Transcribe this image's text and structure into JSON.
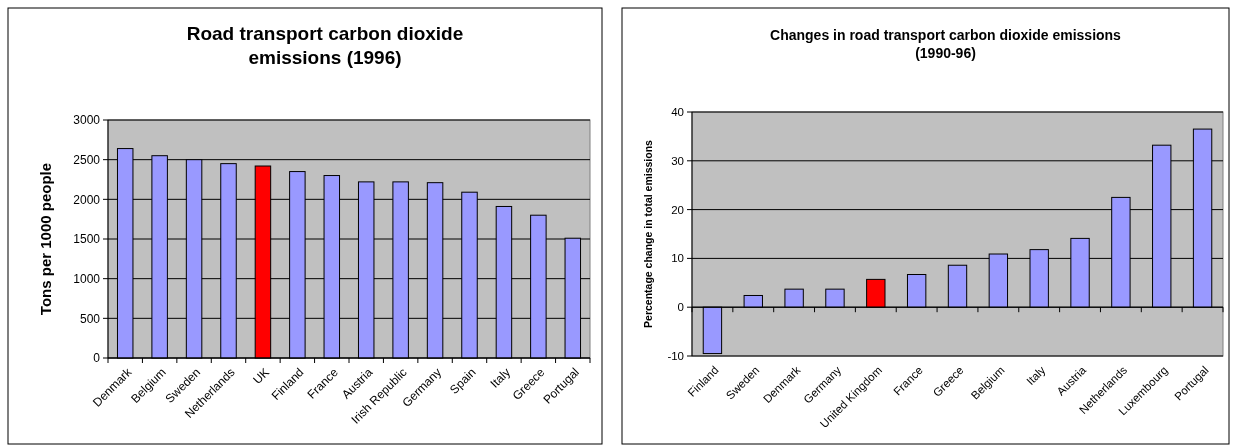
{
  "chart_data": [
    {
      "type": "bar",
      "title": "Road transport carbon dioxide emissions (1996)",
      "ylabel": "Tons per 1000 people",
      "categories": [
        "Denmark",
        "Belgium",
        "Sweden",
        "Netherlands",
        "UK",
        "Finland",
        "France",
        "Austria",
        "Irish Republic",
        "Germany",
        "Spain",
        "Italy",
        "Greece",
        "Portugal"
      ],
      "values": [
        2640,
        2550,
        2500,
        2450,
        2420,
        2350,
        2300,
        2220,
        2220,
        2210,
        2090,
        1910,
        1800,
        1510
      ],
      "colors": [
        "#9999ff",
        "#9999ff",
        "#9999ff",
        "#9999ff",
        "#ff0000",
        "#9999ff",
        "#9999ff",
        "#9999ff",
        "#9999ff",
        "#9999ff",
        "#9999ff",
        "#9999ff",
        "#9999ff",
        "#9999ff"
      ],
      "ylim": [
        0,
        3000
      ],
      "yticks": [
        0,
        500,
        1000,
        1500,
        2000,
        2500,
        3000
      ],
      "grid": "y"
    },
    {
      "type": "bar",
      "title": "Changes in road transport carbon dioxide emissions (1990-96)",
      "ylabel": "Percentage change in total emissions",
      "categories": [
        "Finland",
        "Sweden",
        "Denmark",
        "Germany",
        "United Kingdom",
        "France",
        "Greece",
        "Belgium",
        "Italy",
        "Austria",
        "Netherlands",
        "Luxembourg",
        "Portugal"
      ],
      "values": [
        -9.5,
        2.4,
        3.7,
        3.7,
        5.7,
        6.7,
        8.6,
        10.9,
        11.8,
        14.1,
        22.5,
        33.2,
        36.5
      ],
      "colors": [
        "#9999ff",
        "#9999ff",
        "#9999ff",
        "#9999ff",
        "#ff0000",
        "#9999ff",
        "#9999ff",
        "#9999ff",
        "#9999ff",
        "#9999ff",
        "#9999ff",
        "#9999ff",
        "#9999ff"
      ],
      "ylim": [
        -10,
        40
      ],
      "yticks": [
        -10,
        0,
        10,
        20,
        30,
        40
      ],
      "grid": "y"
    }
  ]
}
